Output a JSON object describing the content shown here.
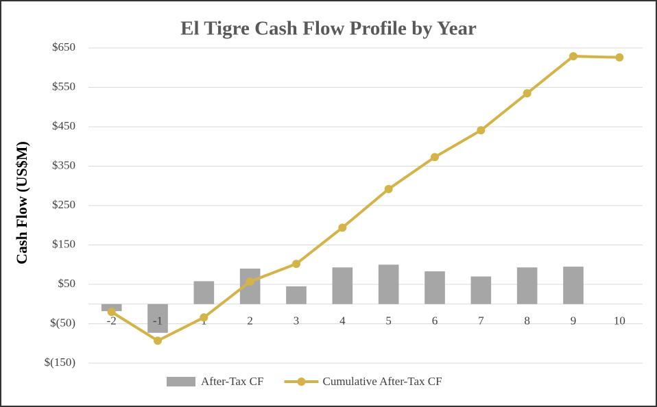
{
  "chart_data": {
    "type": "bar-line",
    "title": "El Tigre Cash Flow Profile by Year",
    "y_label": "Cash Flow (US$M)",
    "categories": [
      "-2",
      "-1",
      "1",
      "2",
      "3",
      "4",
      "5",
      "6",
      "7",
      "8",
      "9",
      "10"
    ],
    "series": [
      {
        "name": "After-Tax CF",
        "type": "bar",
        "color": "#a6a6a6",
        "values": [
          -18,
          -73,
          58,
          90,
          45,
          93,
          100,
          83,
          70,
          93,
          95,
          null
        ]
      },
      {
        "name": "Cumulative After-Tax CF",
        "type": "line",
        "color": "#d4b448",
        "values": [
          -20,
          -93,
          -34,
          57,
          102,
          194,
          292,
          373,
          441,
          535,
          629,
          626
        ]
      }
    ],
    "ylim": [
      -150,
      650
    ],
    "yticks": [
      {
        "value": -150,
        "label": "$(150)"
      },
      {
        "value": -50,
        "label": "$(50)"
      },
      {
        "value": 50,
        "label": "$50"
      },
      {
        "value": 150,
        "label": "$150"
      },
      {
        "value": 250,
        "label": "$250"
      },
      {
        "value": 350,
        "label": "$350"
      },
      {
        "value": 450,
        "label": "$450"
      },
      {
        "value": 550,
        "label": "$550"
      },
      {
        "value": 650,
        "label": "$650"
      }
    ],
    "grid": true
  }
}
